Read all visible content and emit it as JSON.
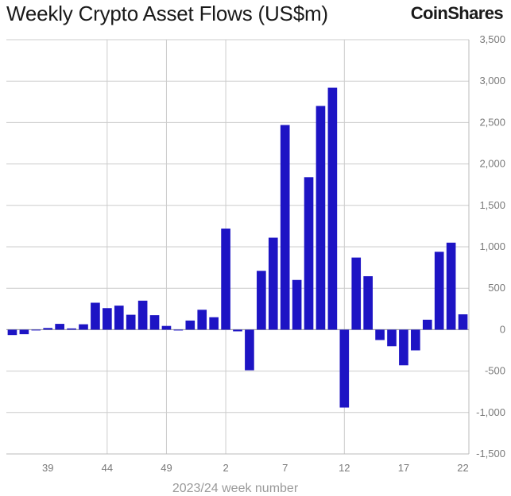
{
  "header": {
    "title": "Weekly Crypto Asset Flows (US$m)",
    "brand": "CoinShares"
  },
  "chart_data": {
    "type": "bar",
    "title": "Weekly Crypto Asset Flows (US$m)",
    "xlabel": "2023/24 week number",
    "ylabel": "",
    "ylim": [
      -1500,
      3500
    ],
    "y_ticks": [
      "3,500",
      "3,000",
      "2,500",
      "2,000",
      "1,500",
      "1,000",
      "500",
      "0",
      "-500",
      "-1,000",
      "-1,500"
    ],
    "y_tick_values": [
      3500,
      3000,
      2500,
      2000,
      1500,
      1000,
      500,
      0,
      -500,
      -1000,
      -1500
    ],
    "x_tick_labels": [
      "39",
      "44",
      "49",
      "2",
      "7",
      "12",
      "17",
      "22"
    ],
    "x_tick_indices": [
      3,
      8,
      13,
      18,
      23,
      28,
      33,
      38
    ],
    "grid": true,
    "bar_color": "#1d14c4",
    "categories": [
      "36",
      "37",
      "38",
      "39",
      "40",
      "41",
      "42",
      "43",
      "44",
      "45",
      "46",
      "47",
      "48",
      "49",
      "50",
      "51",
      "52",
      "1",
      "2",
      "3",
      "4",
      "5",
      "6",
      "7",
      "8",
      "9",
      "10",
      "11",
      "12",
      "13",
      "14",
      "15",
      "16",
      "17",
      "18",
      "19",
      "20",
      "21",
      "22"
    ],
    "values": [
      -65,
      -55,
      -5,
      20,
      70,
      15,
      65,
      325,
      260,
      290,
      180,
      350,
      175,
      45,
      -10,
      110,
      240,
      150,
      1220,
      -20,
      -490,
      710,
      1110,
      2470,
      600,
      1840,
      2700,
      2920,
      -940,
      870,
      645,
      -125,
      -200,
      -430,
      -250,
      120,
      940,
      1050,
      185
    ]
  }
}
